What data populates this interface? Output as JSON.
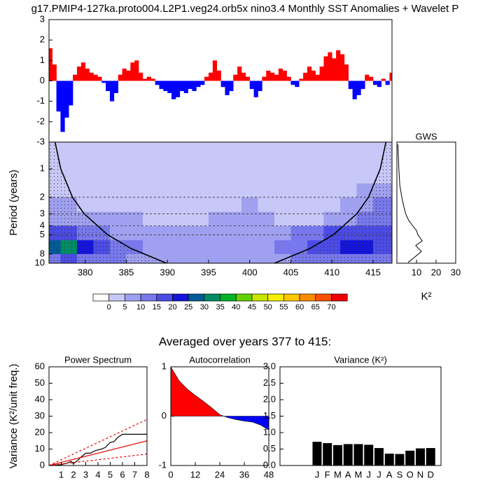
{
  "title": "g17.PMIP4-127ka.proto004.L2P1.veg24.orb5x nino3.4 Monthly SST Anomalies + Wavelet P",
  "section_title": "Averaged over years 377 to 415:",
  "chart_data": [
    {
      "type": "bar",
      "x": [
        375.75,
        376.25,
        376.75,
        377.25,
        377.75,
        378.25,
        378.75,
        379.25,
        379.75,
        380.25,
        380.75,
        381.25,
        381.75,
        382.25,
        382.75,
        383.25,
        383.75,
        384.25,
        384.75,
        385.25,
        385.75,
        386.25,
        386.75,
        387.25,
        387.75,
        388.25,
        388.75,
        389.25,
        389.75,
        390.25,
        390.75,
        391.25,
        391.75,
        392.25,
        392.75,
        393.25,
        393.75,
        394.25,
        394.75,
        395.25,
        395.75,
        396.25,
        396.75,
        397.25,
        397.75,
        398.25,
        398.75,
        399.25,
        399.75,
        400.25,
        400.75,
        401.25,
        401.75,
        402.25,
        402.75,
        403.25,
        403.75,
        404.25,
        404.75,
        405.25,
        405.75,
        406.25,
        406.75,
        407.25,
        407.75,
        408.25,
        408.75,
        409.25,
        409.75,
        410.25,
        410.75,
        411.25,
        411.75,
        412.25,
        412.75,
        413.25,
        413.75,
        414.25,
        414.75,
        415.25,
        415.75,
        416.25,
        416.75,
        417.25
      ],
      "values": [
        1.6,
        0.8,
        -1.5,
        -2.5,
        -1.8,
        -1.2,
        0.3,
        0.7,
        0.9,
        0.6,
        0.4,
        0.3,
        0.2,
        -0.1,
        -0.5,
        -1.0,
        -0.6,
        0.3,
        0.6,
        0.5,
        0.9,
        1.0,
        0.4,
        0.1,
        0.2,
        0.1,
        -0.2,
        -0.4,
        -0.5,
        -0.6,
        -0.9,
        -0.8,
        -0.5,
        -0.6,
        -0.4,
        -0.5,
        -0.3,
        -0.2,
        0.2,
        0.4,
        1.0,
        0.5,
        -0.3,
        -0.7,
        -0.5,
        0.3,
        0.7,
        0.4,
        0.2,
        -0.4,
        -0.8,
        -0.5,
        0.2,
        0.5,
        0.4,
        0.3,
        0.6,
        0.5,
        0.2,
        -0.2,
        -0.3,
        0.1,
        0.4,
        0.7,
        0.5,
        0.3,
        0.7,
        1.2,
        1.4,
        1.1,
        1.5,
        1.3,
        0.8,
        -0.4,
        -0.9,
        -0.7,
        -0.4,
        0.3,
        0.2,
        -0.2,
        -0.3,
        0.1,
        -0.2,
        0.4
      ],
      "pos_color": "#ff0000",
      "neg_color": "#0000ff",
      "xlim": [
        375.6,
        417.3
      ],
      "ylim": [
        -3,
        3
      ],
      "yticks": [
        -3,
        -2,
        -1,
        0,
        1,
        2,
        3
      ]
    },
    {
      "type": "heatmap",
      "ylabel": "Period (years)",
      "x": [
        376,
        378,
        380,
        382,
        384,
        386,
        388,
        390,
        392,
        394,
        396,
        398,
        400,
        402,
        404,
        406,
        408,
        410,
        412,
        414,
        416
      ],
      "y": [
        0.6,
        0.85,
        1.2,
        1.7,
        2.4,
        3.4,
        4.8,
        6.8,
        9.4
      ],
      "z": [
        [
          2,
          2,
          2,
          2,
          2,
          2,
          2,
          2,
          2,
          2,
          2,
          2,
          2,
          2,
          2,
          2,
          2,
          2,
          2,
          2,
          2
        ],
        [
          2,
          2,
          2,
          2,
          2,
          2,
          2,
          2,
          2,
          2,
          2,
          2,
          2,
          2,
          2,
          2,
          2,
          2,
          2,
          2,
          2
        ],
        [
          2,
          2,
          2,
          2,
          2,
          2,
          2,
          2,
          2,
          2,
          2,
          2,
          2,
          2,
          2,
          2,
          2,
          2,
          3,
          3,
          4
        ],
        [
          4,
          3,
          2,
          2,
          2,
          2,
          2,
          2,
          2,
          2,
          2,
          2,
          2,
          2,
          2,
          2,
          2,
          2,
          4,
          6,
          8
        ],
        [
          8,
          6,
          4,
          3,
          3,
          3,
          3,
          3,
          3,
          3,
          3,
          4,
          6,
          4,
          3,
          3,
          3,
          3,
          6,
          9,
          12
        ],
        [
          8,
          8,
          7,
          6,
          7,
          6,
          3,
          3,
          3,
          3,
          6,
          8,
          8,
          7,
          4,
          4,
          4,
          6,
          9,
          11,
          12
        ],
        [
          16,
          16,
          14,
          12,
          9,
          8,
          7,
          6,
          6,
          6,
          7,
          7,
          8,
          8,
          9,
          12,
          14,
          16,
          16,
          18,
          16
        ],
        [
          26,
          34,
          24,
          18,
          14,
          12,
          9,
          8,
          7,
          7,
          7,
          7,
          8,
          9,
          12,
          14,
          16,
          18,
          20,
          22,
          18
        ],
        [
          14,
          18,
          14,
          12,
          10,
          9,
          8,
          7,
          6,
          6,
          6,
          6,
          6,
          7,
          8,
          10,
          12,
          14,
          14,
          14,
          12
        ]
      ],
      "levels": [
        0,
        5,
        10,
        15,
        20,
        25,
        30,
        35,
        40,
        45,
        50,
        55,
        60,
        65,
        70
      ],
      "colors": [
        "#ffffff",
        "#c8c8f8",
        "#a0a0f0",
        "#7878ec",
        "#4b4be6",
        "#1414dc",
        "#005a96",
        "#008c64",
        "#00b428",
        "#64d200",
        "#c8e600",
        "#f5f000",
        "#ffc800",
        "#ff8c00",
        "#ff5000",
        "#f00000"
      ],
      "coi": {
        "x": [
          376.34,
          377.03,
          378.46,
          379.89,
          382.74,
          385.6,
          389.89,
          null,
          403.01,
          407.3,
          410.16,
          413.01,
          414.44,
          415.87,
          416.56
        ],
        "period": [
          0.52,
          1,
          2,
          3,
          5,
          7,
          10,
          null,
          10,
          7,
          5,
          3,
          2,
          1,
          0.52
        ]
      },
      "hlines": [
        2,
        3,
        4,
        5
      ],
      "xlim": [
        375.6,
        417.3
      ],
      "xticks": [
        380,
        385,
        390,
        395,
        400,
        405,
        410,
        415
      ],
      "ylim": [
        0.52,
        10
      ],
      "ylog": true,
      "yticks": [
        1,
        2,
        3,
        4,
        5,
        8,
        10
      ]
    },
    {
      "type": "profile",
      "title": "GWS",
      "xlabel": "K²",
      "y": [
        0.55,
        1,
        1.5,
        2,
        2.5,
        3,
        3.5,
        4,
        4.5,
        5,
        5.8,
        6.5,
        7.5,
        9,
        9.8
      ],
      "values": [
        0.5,
        1,
        1.5,
        2.5,
        3.5,
        4.5,
        6,
        8,
        10,
        10.7,
        12.9,
        9.6,
        12.5,
        8,
        5.7
      ],
      "color": "#000000",
      "xlim": [
        0,
        30
      ],
      "xticks": [
        10,
        20,
        30
      ],
      "ylim": [
        0.52,
        10
      ],
      "ylog": true
    },
    {
      "type": "line",
      "title": "Power Spectrum",
      "ylabel": "Variance (K²/unit freq.)",
      "series": [
        {
          "color": "#000000",
          "dashed": false,
          "x": [
            0,
            0.5,
            1,
            1.5,
            1.8,
            2,
            2.3,
            2.6,
            3,
            3.4,
            3.6,
            4,
            4.3,
            4.6,
            5,
            5.3,
            5.6,
            6,
            7,
            8
          ],
          "values": [
            0,
            0.3,
            0.5,
            1.5,
            2.5,
            1.2,
            2.8,
            5,
            7.5,
            7.5,
            8.5,
            9.5,
            10,
            11,
            14,
            14.5,
            17,
            19,
            19,
            19
          ]
        },
        {
          "color": "#ee0000",
          "dashed": false,
          "x": [
            0,
            8
          ],
          "values": [
            0,
            15
          ]
        },
        {
          "color": "#ee0000",
          "dashed": true,
          "x": [
            0,
            8
          ],
          "values": [
            0,
            28
          ]
        },
        {
          "color": "#ee0000",
          "dashed": true,
          "x": [
            0,
            8
          ],
          "values": [
            0,
            7
          ]
        }
      ],
      "xlim": [
        0,
        8
      ],
      "xticks": [
        1,
        2,
        3,
        4,
        5,
        6,
        7,
        8
      ],
      "ylim": [
        0,
        60
      ],
      "yticks": [
        0,
        10,
        20,
        30,
        40,
        50,
        60
      ]
    },
    {
      "type": "area",
      "title": "Autocorrelation",
      "x": [
        0,
        4,
        8,
        12,
        16,
        20,
        24,
        28,
        32,
        36,
        40,
        44,
        48
      ],
      "values": [
        1.0,
        0.72,
        0.55,
        0.42,
        0.3,
        0.17,
        0.03,
        -0.03,
        -0.07,
        -0.1,
        -0.12,
        -0.18,
        -0.28
      ],
      "pos_color": "#ff0000",
      "neg_color": "#0000ff",
      "xlim": [
        0,
        48
      ],
      "xticks": [
        0,
        12,
        24,
        36,
        48
      ],
      "ylim": [
        -1,
        1
      ],
      "yticks": [
        -1,
        0,
        1
      ]
    },
    {
      "type": "bar",
      "title": "Variance (K²)",
      "categories": [
        "J",
        "F",
        "M",
        "A",
        "M",
        "J",
        "J",
        "A",
        "S",
        "O",
        "N",
        "D"
      ],
      "values": [
        0.72,
        0.68,
        0.62,
        0.65,
        0.65,
        0.63,
        0.53,
        0.36,
        0.35,
        0.45,
        0.52,
        0.53
      ],
      "color": "#000000",
      "ylim": [
        0,
        3
      ],
      "yticks": [
        {
          "value": 0,
          "label": "0.0"
        },
        0.5,
        {
          "value": 1,
          "label": "1.0"
        },
        1.5,
        {
          "value": 2,
          "label": "2.0"
        },
        2.5,
        {
          "value": 3,
          "label": "3.0"
        }
      ]
    }
  ]
}
